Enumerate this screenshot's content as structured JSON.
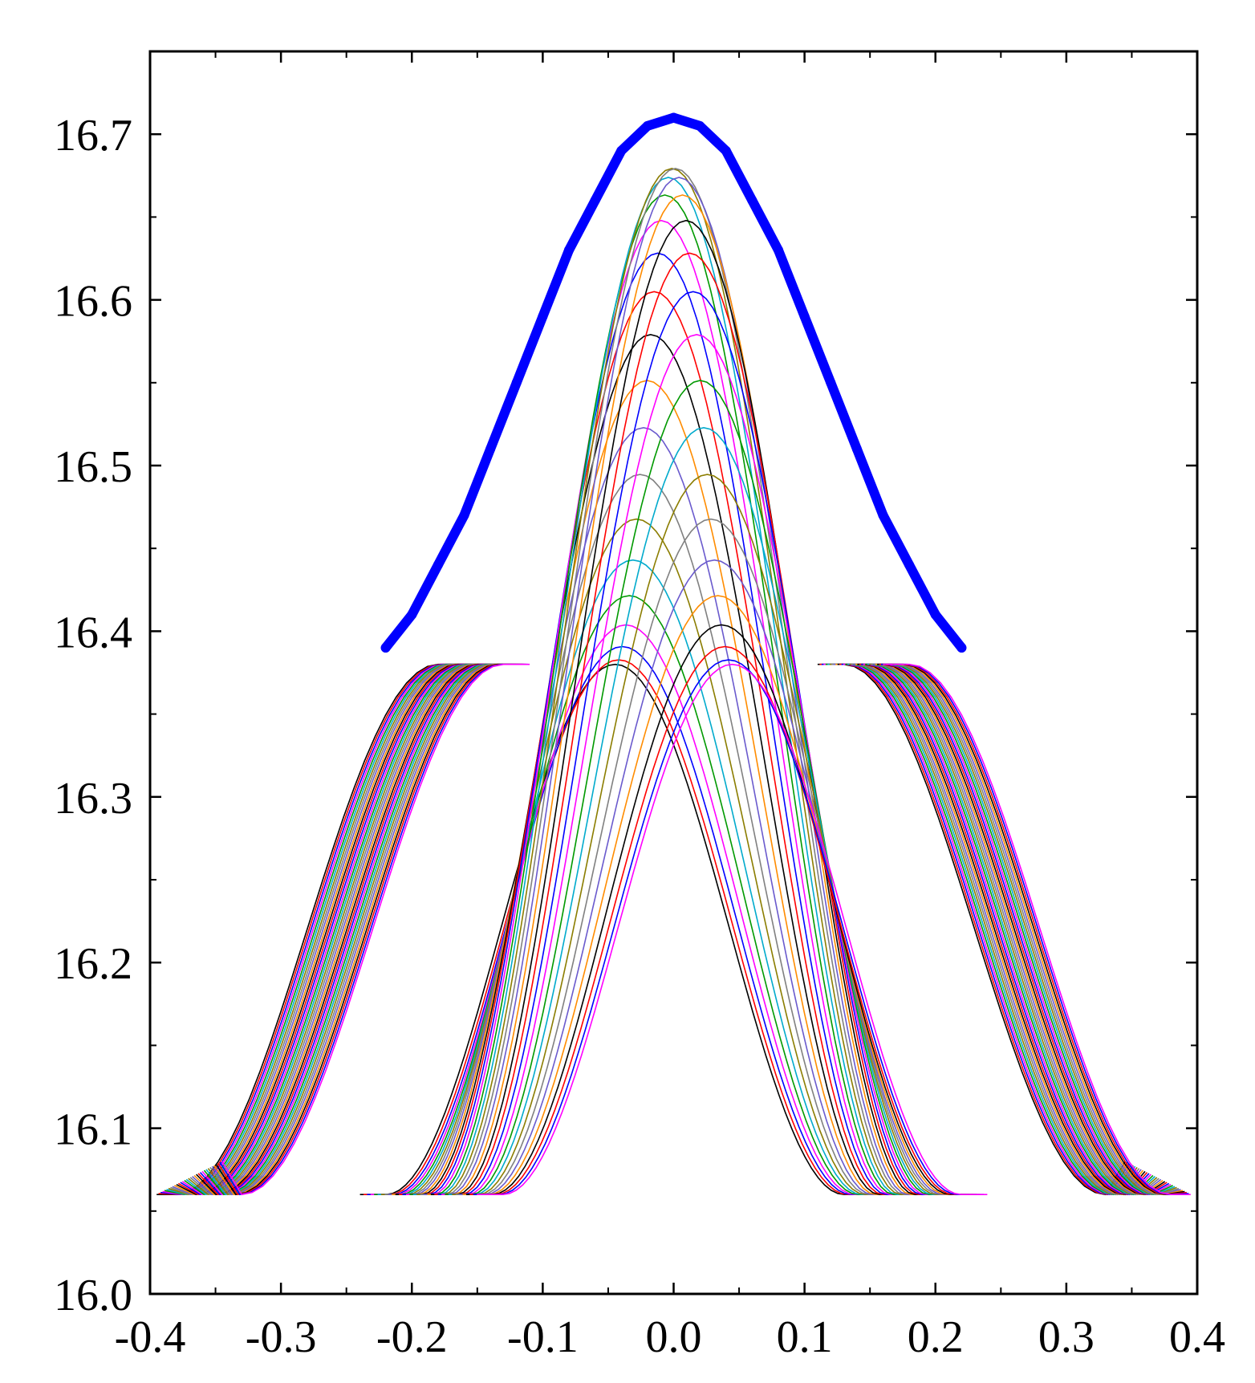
{
  "chart_data": {
    "type": "line",
    "title": "",
    "xlabel": "",
    "ylabel": "",
    "xlim": [
      -0.4,
      0.4
    ],
    "ylim": [
      16.0,
      16.75
    ],
    "x_major_ticks": [
      -0.4,
      -0.3,
      -0.2,
      -0.1,
      0.0,
      0.1,
      0.2,
      0.3,
      0.4
    ],
    "x_tick_labels": [
      "-0.4",
      "-0.3",
      "-0.2",
      "-0.1",
      "0.0",
      "0.1",
      "0.2",
      "0.3",
      "0.4"
    ],
    "y_major_ticks": [
      16.0,
      16.1,
      16.2,
      16.3,
      16.4,
      16.5,
      16.6,
      16.7
    ],
    "y_tick_labels": [
      "16.0",
      "16.1",
      "16.2",
      "16.3",
      "16.4",
      "16.5",
      "16.6",
      "16.7"
    ],
    "grid": false,
    "legend": "none",
    "family": {
      "description_count": 34,
      "k_range": [
        -0.22,
        0.22
      ],
      "central_curve": {
        "peak_y_at_k0": 16.68,
        "peak_y_at_edge": 16.38,
        "bottom_y": 16.06,
        "x_extent": [
          -0.175,
          0.175
        ]
      },
      "side_curves": {
        "top_y": 16.38,
        "bottom_y": 16.06,
        "outer_bottom_x": 0.38,
        "inner_top_x": 0.18
      },
      "colors": [
        "#000000",
        "#ff0000",
        "#0000ff",
        "#ff00ff",
        "#009900",
        "#00aacc",
        "#8b7d00",
        "#808080",
        "#6a5acd",
        "#ff8c00"
      ]
    },
    "series": [
      {
        "color": "#0000ff",
        "points": [
          [
            -0.22,
            16.39
          ],
          [
            -0.2,
            16.41
          ],
          [
            -0.18,
            16.44
          ],
          [
            -0.16,
            16.47
          ],
          [
            -0.14,
            16.51
          ],
          [
            -0.12,
            16.55
          ],
          [
            -0.1,
            16.59
          ],
          [
            -0.08,
            16.63
          ],
          [
            -0.06,
            16.66
          ],
          [
            -0.04,
            16.69
          ],
          [
            -0.02,
            16.705
          ],
          [
            0.0,
            16.71
          ],
          [
            0.02,
            16.705
          ],
          [
            0.04,
            16.69
          ],
          [
            0.06,
            16.66
          ],
          [
            0.08,
            16.63
          ],
          [
            0.1,
            16.59
          ],
          [
            0.12,
            16.55
          ],
          [
            0.14,
            16.51
          ],
          [
            0.16,
            16.47
          ],
          [
            0.18,
            16.44
          ],
          [
            0.2,
            16.41
          ],
          [
            0.22,
            16.39
          ]
        ]
      }
    ]
  }
}
